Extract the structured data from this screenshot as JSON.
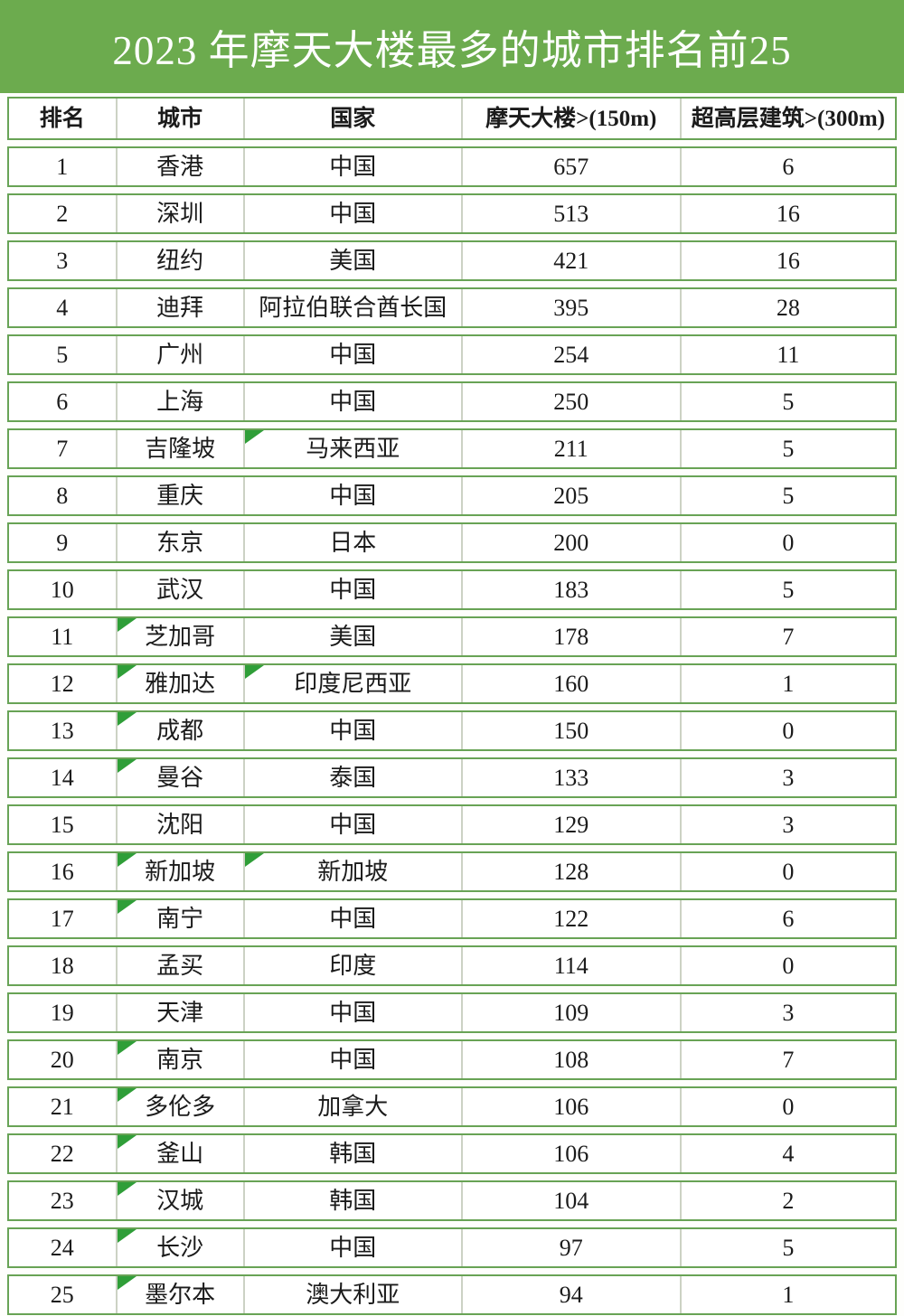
{
  "title": "2023 年摩天大楼最多的城市排名前25",
  "colors": {
    "title_bg": "#6cab4e",
    "title_text": "#ffffff",
    "row_border": "#68a355",
    "cell_divider": "#ccd2c4",
    "corner_marker": "#2f9e38",
    "cell_text": "#1b1b1b",
    "cell_bg": "#ffffff"
  },
  "icons": {
    "corner_marker": "green top-left corner triangle (spreadsheet cell flag)"
  },
  "chart_data": {
    "type": "table",
    "title": "2023 年摩天大楼最多的城市排名前25",
    "columns": [
      "排名",
      "城市",
      "国家",
      "摩天大楼>(150m)",
      "超高层建筑>(300m)"
    ],
    "rows": [
      {
        "rank": "1",
        "city": "香港",
        "country": "中国",
        "skyscrapers": "657",
        "supertall": "6",
        "city_marker": false,
        "country_marker": false
      },
      {
        "rank": "2",
        "city": "深圳",
        "country": "中国",
        "skyscrapers": "513",
        "supertall": "16",
        "city_marker": false,
        "country_marker": false
      },
      {
        "rank": "3",
        "city": "纽约",
        "country": "美国",
        "skyscrapers": "421",
        "supertall": "16",
        "city_marker": false,
        "country_marker": false
      },
      {
        "rank": "4",
        "city": "迪拜",
        "country": "阿拉伯联合酋长国",
        "skyscrapers": "395",
        "supertall": "28",
        "city_marker": false,
        "country_marker": false
      },
      {
        "rank": "5",
        "city": "广州",
        "country": "中国",
        "skyscrapers": "254",
        "supertall": "11",
        "city_marker": false,
        "country_marker": false
      },
      {
        "rank": "6",
        "city": "上海",
        "country": "中国",
        "skyscrapers": "250",
        "supertall": "5",
        "city_marker": false,
        "country_marker": false
      },
      {
        "rank": "7",
        "city": "吉隆坡",
        "country": "马来西亚",
        "skyscrapers": "211",
        "supertall": "5",
        "city_marker": false,
        "country_marker": true
      },
      {
        "rank": "8",
        "city": "重庆",
        "country": "中国",
        "skyscrapers": "205",
        "supertall": "5",
        "city_marker": false,
        "country_marker": false
      },
      {
        "rank": "9",
        "city": "东京",
        "country": "日本",
        "skyscrapers": "200",
        "supertall": "0",
        "city_marker": false,
        "country_marker": false
      },
      {
        "rank": "10",
        "city": "武汉",
        "country": "中国",
        "skyscrapers": "183",
        "supertall": "5",
        "city_marker": false,
        "country_marker": false
      },
      {
        "rank": "11",
        "city": "芝加哥",
        "country": "美国",
        "skyscrapers": "178",
        "supertall": "7",
        "city_marker": true,
        "country_marker": false
      },
      {
        "rank": "12",
        "city": "雅加达",
        "country": "印度尼西亚",
        "skyscrapers": "160",
        "supertall": "1",
        "city_marker": true,
        "country_marker": true
      },
      {
        "rank": "13",
        "city": "成都",
        "country": "中国",
        "skyscrapers": "150",
        "supertall": "0",
        "city_marker": true,
        "country_marker": false
      },
      {
        "rank": "14",
        "city": "曼谷",
        "country": "泰国",
        "skyscrapers": "133",
        "supertall": "3",
        "city_marker": true,
        "country_marker": false
      },
      {
        "rank": "15",
        "city": "沈阳",
        "country": "中国",
        "skyscrapers": "129",
        "supertall": "3",
        "city_marker": false,
        "country_marker": false
      },
      {
        "rank": "16",
        "city": "新加坡",
        "country": "新加坡",
        "skyscrapers": "128",
        "supertall": "0",
        "city_marker": true,
        "country_marker": true
      },
      {
        "rank": "17",
        "city": "南宁",
        "country": "中国",
        "skyscrapers": "122",
        "supertall": "6",
        "city_marker": true,
        "country_marker": false
      },
      {
        "rank": "18",
        "city": "孟买",
        "country": "印度",
        "skyscrapers": "114",
        "supertall": "0",
        "city_marker": false,
        "country_marker": false
      },
      {
        "rank": "19",
        "city": "天津",
        "country": "中国",
        "skyscrapers": "109",
        "supertall": "3",
        "city_marker": false,
        "country_marker": false
      },
      {
        "rank": "20",
        "city": "南京",
        "country": "中国",
        "skyscrapers": "108",
        "supertall": "7",
        "city_marker": true,
        "country_marker": false
      },
      {
        "rank": "21",
        "city": "多伦多",
        "country": "加拿大",
        "skyscrapers": "106",
        "supertall": "0",
        "city_marker": true,
        "country_marker": false
      },
      {
        "rank": "22",
        "city": "釜山",
        "country": "韩国",
        "skyscrapers": "106",
        "supertall": "4",
        "city_marker": true,
        "country_marker": false
      },
      {
        "rank": "23",
        "city": "汉城",
        "country": "韩国",
        "skyscrapers": "104",
        "supertall": "2",
        "city_marker": true,
        "country_marker": false
      },
      {
        "rank": "24",
        "city": "长沙",
        "country": "中国",
        "skyscrapers": "97",
        "supertall": "5",
        "city_marker": true,
        "country_marker": false
      },
      {
        "rank": "25",
        "city": "墨尔本",
        "country": "澳大利亚",
        "skyscrapers": "94",
        "supertall": "1",
        "city_marker": true,
        "country_marker": false
      }
    ]
  }
}
